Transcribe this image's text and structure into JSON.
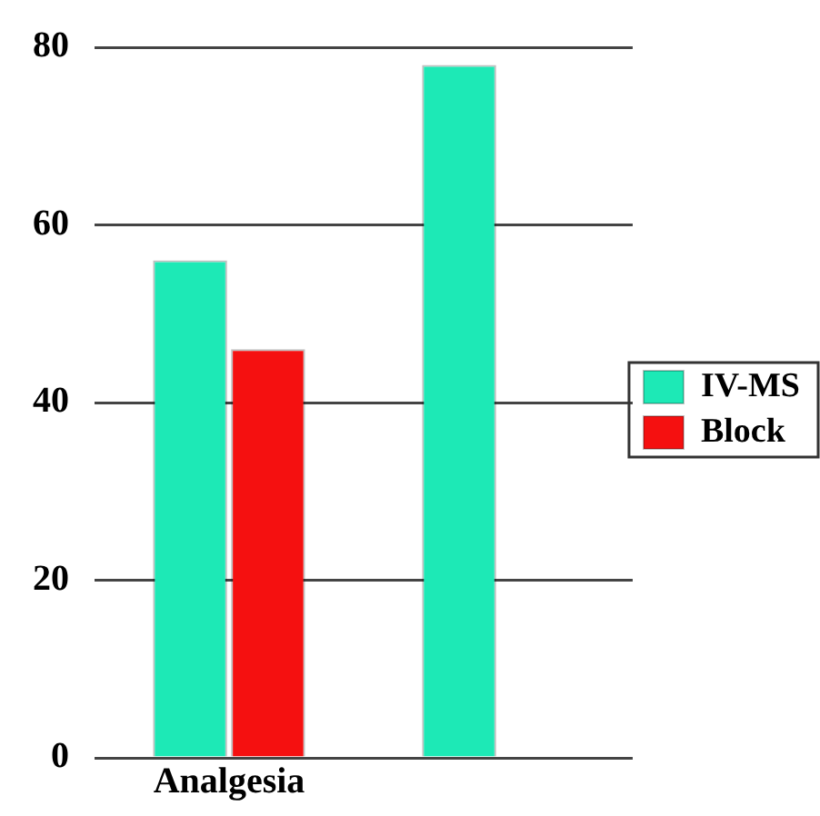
{
  "chart_data": {
    "type": "bar",
    "categories": [
      "Analgesia",
      null
    ],
    "series": [
      {
        "name": "IV-MS",
        "color": "#1de9b6",
        "values": [
          56,
          78
        ]
      },
      {
        "name": "Block",
        "color": "#f51010",
        "values": [
          46,
          null
        ]
      }
    ],
    "ylim": [
      0,
      80
    ],
    "yticks": [
      0,
      20,
      40,
      60,
      80
    ],
    "grid": "y",
    "legend": "right"
  }
}
